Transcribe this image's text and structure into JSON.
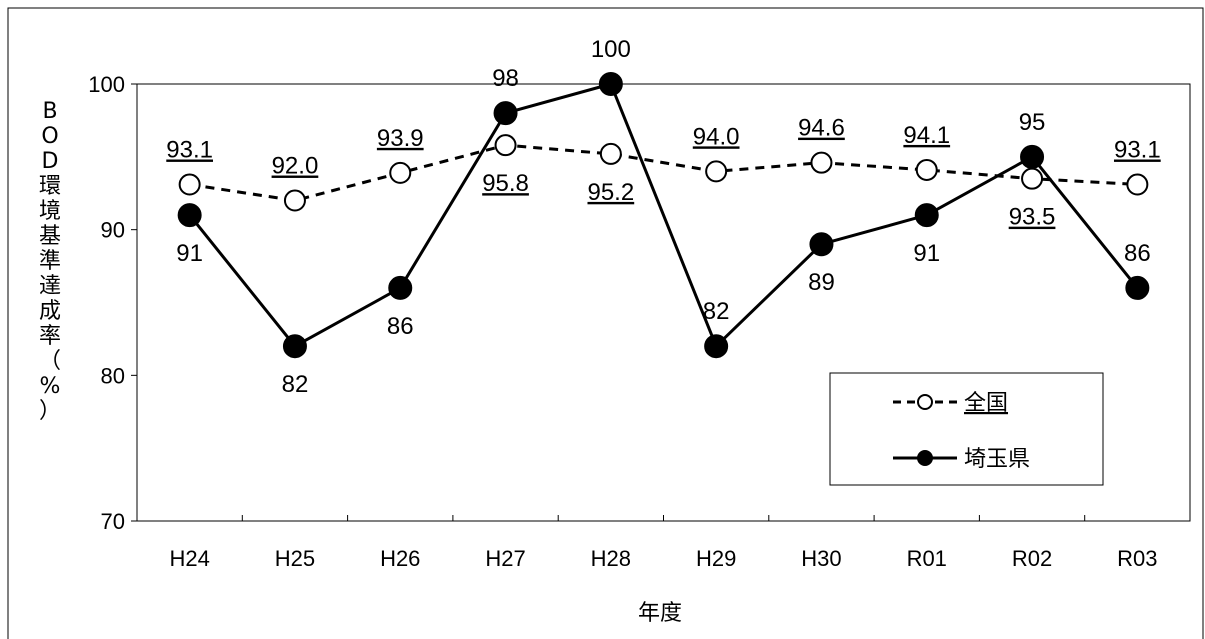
{
  "chart_data": {
    "type": "line",
    "categories": [
      "H24",
      "H25",
      "H26",
      "H27",
      "H28",
      "H29",
      "H30",
      "R01",
      "R02",
      "R03"
    ],
    "series": [
      {
        "name": "全国",
        "values": [
          93.1,
          92.0,
          93.9,
          95.8,
          95.2,
          94.0,
          94.6,
          94.1,
          93.5,
          93.1
        ],
        "labels": [
          "93.1",
          "92.0",
          "93.9",
          "95.8",
          "95.2",
          "94.0",
          "94.6",
          "94.1",
          "93.5",
          "93.1"
        ],
        "label_positions": [
          "above",
          "above",
          "above",
          "below",
          "below",
          "above",
          "above",
          "above",
          "below",
          "above"
        ],
        "line_style": "dashed",
        "marker": "open-circle",
        "label_underline": true
      },
      {
        "name": "埼玉県",
        "values": [
          91,
          82,
          86,
          98,
          100,
          82,
          89,
          91,
          95,
          86
        ],
        "labels": [
          "91",
          "82",
          "86",
          "98",
          "100",
          "82",
          "89",
          "91",
          "95",
          "86"
        ],
        "label_positions": [
          "below",
          "below",
          "below",
          "above",
          "above",
          "above",
          "below",
          "below",
          "above",
          "above"
        ],
        "line_style": "solid",
        "marker": "filled-circle",
        "label_underline": false
      }
    ],
    "xlabel": "年度",
    "ylabel": "BOD環境基準達成率（%）",
    "ylim": [
      70,
      100
    ],
    "yticks": [
      70,
      80,
      90,
      100
    ],
    "grid": false,
    "legend": {
      "placement": "bottom-right",
      "entries": [
        "全国",
        "埼玉県"
      ]
    },
    "colors": {
      "line": "#000000",
      "open_marker_fill": "#ffffff",
      "background": "#ffffff"
    }
  }
}
